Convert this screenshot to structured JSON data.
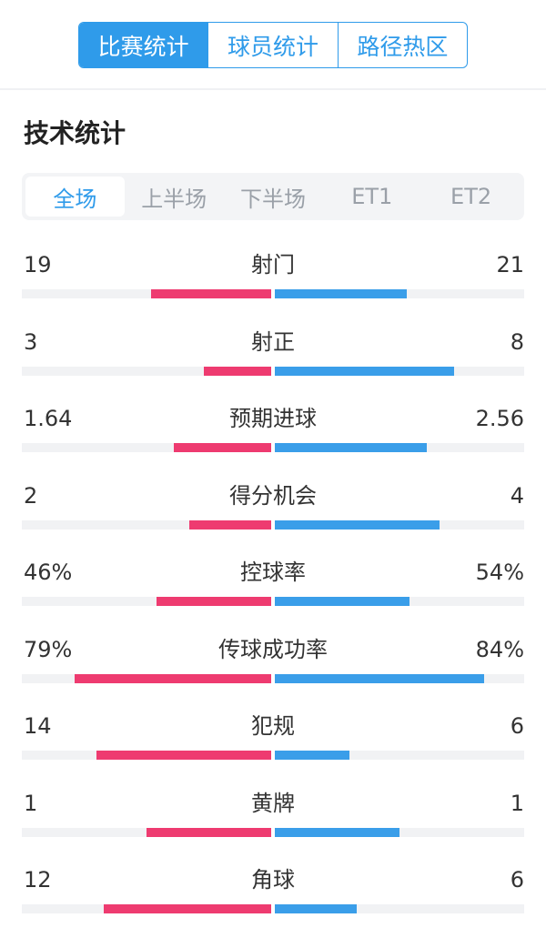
{
  "top_tabs": [
    {
      "label": "比赛统计",
      "active": true
    },
    {
      "label": "球员统计",
      "active": false
    },
    {
      "label": "路径热区",
      "active": false
    }
  ],
  "section_title": "技术统计",
  "period_tabs": [
    {
      "label": "全场",
      "active": true
    },
    {
      "label": "上半场",
      "active": false
    },
    {
      "label": "下半场",
      "active": false
    },
    {
      "label": "ET1",
      "active": false
    },
    {
      "label": "ET2",
      "active": false
    }
  ],
  "colors": {
    "accent": "#2f9bea",
    "home_bar": "#ee3b70",
    "away_bar": "#3a9ee9",
    "track": "#f1f2f4"
  },
  "stats": [
    {
      "label": "射门",
      "home": "19",
      "away": "21",
      "home_fill": 0.48,
      "away_fill": 0.53
    },
    {
      "label": "射正",
      "home": "3",
      "away": "8",
      "home_fill": 0.27,
      "away_fill": 0.72
    },
    {
      "label": "预期进球",
      "home": "1.64",
      "away": "2.56",
      "home_fill": 0.39,
      "away_fill": 0.61
    },
    {
      "label": "得分机会",
      "home": "2",
      "away": "4",
      "home_fill": 0.33,
      "away_fill": 0.66
    },
    {
      "label": "控球率",
      "home": "46%",
      "away": "54%",
      "home_fill": 0.46,
      "away_fill": 0.54
    },
    {
      "label": "传球成功率",
      "home": "79%",
      "away": "84%",
      "home_fill": 0.79,
      "away_fill": 0.84
    },
    {
      "label": "犯规",
      "home": "14",
      "away": "6",
      "home_fill": 0.7,
      "away_fill": 0.3
    },
    {
      "label": "黄牌",
      "home": "1",
      "away": "1",
      "home_fill": 0.5,
      "away_fill": 0.5
    },
    {
      "label": "角球",
      "home": "12",
      "away": "6",
      "home_fill": 0.67,
      "away_fill": 0.33
    }
  ]
}
